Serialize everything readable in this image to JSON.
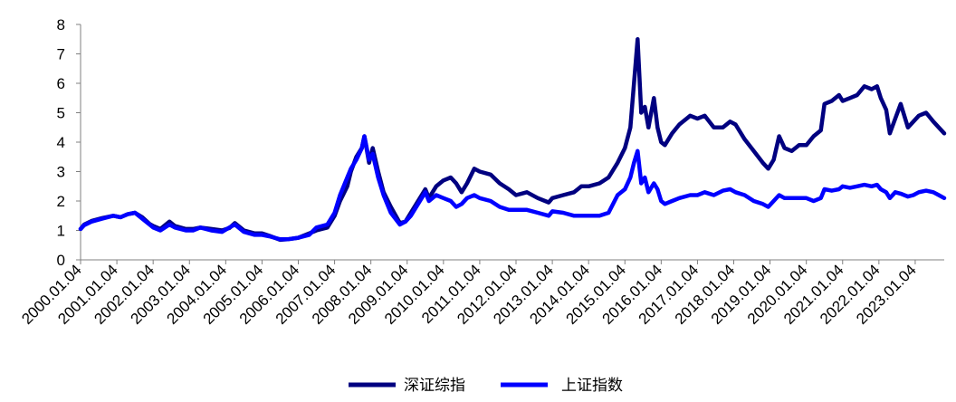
{
  "chart_data": {
    "type": "line",
    "title": "",
    "xlabel": "",
    "ylabel": "",
    "ylim": [
      0,
      8
    ],
    "yticks": [
      0,
      1,
      2,
      3,
      4,
      5,
      6,
      7,
      8
    ],
    "xlim": [
      2000.0,
      2023.8
    ],
    "xtick_labels": [
      "2000.01.04",
      "2001.01.04",
      "2002.01.04",
      "2003.01.04",
      "2004.01.04",
      "2005.01.04",
      "2006.01.04",
      "2007.01.04",
      "2008.01.04",
      "2009.01.04",
      "2010.01.04",
      "2011.01.04",
      "2012.01.04",
      "2013.01.04",
      "2014.01.04",
      "2015.01.04",
      "2016.01.04",
      "2017.01.04",
      "2018.01.04",
      "2019.01.04",
      "2020.01.04",
      "2021.01.04",
      "2022.01.04",
      "2023.01.04"
    ],
    "grid": false,
    "legend_position": "bottom-center",
    "series": [
      {
        "name": "深证综指",
        "color": "#000080",
        "points": [
          [
            2000.0,
            1.05
          ],
          [
            2000.1,
            1.2
          ],
          [
            2000.3,
            1.32
          ],
          [
            2000.6,
            1.42
          ],
          [
            2000.9,
            1.5
          ],
          [
            2001.1,
            1.45
          ],
          [
            2001.3,
            1.55
          ],
          [
            2001.5,
            1.6
          ],
          [
            2001.7,
            1.45
          ],
          [
            2001.9,
            1.22
          ],
          [
            2002.0,
            1.15
          ],
          [
            2002.2,
            1.05
          ],
          [
            2002.45,
            1.3
          ],
          [
            2002.6,
            1.15
          ],
          [
            2002.9,
            1.05
          ],
          [
            2003.1,
            1.05
          ],
          [
            2003.3,
            1.1
          ],
          [
            2003.6,
            1.05
          ],
          [
            2003.9,
            1.0
          ],
          [
            2004.1,
            1.08
          ],
          [
            2004.25,
            1.25
          ],
          [
            2004.5,
            1.0
          ],
          [
            2004.8,
            0.9
          ],
          [
            2005.0,
            0.9
          ],
          [
            2005.2,
            0.82
          ],
          [
            2005.5,
            0.68
          ],
          [
            2005.7,
            0.7
          ],
          [
            2006.0,
            0.75
          ],
          [
            2006.3,
            0.9
          ],
          [
            2006.5,
            1.0
          ],
          [
            2006.8,
            1.1
          ],
          [
            2007.0,
            1.5
          ],
          [
            2007.15,
            2.0
          ],
          [
            2007.35,
            2.5
          ],
          [
            2007.45,
            3.0
          ],
          [
            2007.6,
            3.5
          ],
          [
            2007.75,
            3.8
          ],
          [
            2007.82,
            4.2
          ],
          [
            2007.95,
            3.3
          ],
          [
            2008.05,
            3.8
          ],
          [
            2008.2,
            3.0
          ],
          [
            2008.35,
            2.3
          ],
          [
            2008.55,
            1.8
          ],
          [
            2008.8,
            1.25
          ],
          [
            2008.95,
            1.3
          ],
          [
            2009.1,
            1.6
          ],
          [
            2009.3,
            2.0
          ],
          [
            2009.5,
            2.4
          ],
          [
            2009.6,
            2.1
          ],
          [
            2009.8,
            2.5
          ],
          [
            2010.0,
            2.7
          ],
          [
            2010.2,
            2.8
          ],
          [
            2010.35,
            2.6
          ],
          [
            2010.5,
            2.3
          ],
          [
            2010.65,
            2.6
          ],
          [
            2010.85,
            3.1
          ],
          [
            2011.0,
            3.0
          ],
          [
            2011.3,
            2.9
          ],
          [
            2011.55,
            2.6
          ],
          [
            2011.8,
            2.4
          ],
          [
            2012.0,
            2.2
          ],
          [
            2012.3,
            2.3
          ],
          [
            2012.6,
            2.1
          ],
          [
            2012.9,
            1.95
          ],
          [
            2013.0,
            2.1
          ],
          [
            2013.3,
            2.2
          ],
          [
            2013.6,
            2.3
          ],
          [
            2013.8,
            2.5
          ],
          [
            2014.0,
            2.5
          ],
          [
            2014.3,
            2.6
          ],
          [
            2014.55,
            2.8
          ],
          [
            2014.8,
            3.3
          ],
          [
            2015.0,
            3.8
          ],
          [
            2015.15,
            4.5
          ],
          [
            2015.25,
            6.0
          ],
          [
            2015.35,
            7.5
          ],
          [
            2015.45,
            5.0
          ],
          [
            2015.55,
            5.2
          ],
          [
            2015.65,
            4.5
          ],
          [
            2015.8,
            5.5
          ],
          [
            2015.9,
            4.5
          ],
          [
            2016.0,
            4.0
          ],
          [
            2016.1,
            3.9
          ],
          [
            2016.3,
            4.3
          ],
          [
            2016.5,
            4.6
          ],
          [
            2016.8,
            4.9
          ],
          [
            2017.0,
            4.8
          ],
          [
            2017.2,
            4.9
          ],
          [
            2017.45,
            4.5
          ],
          [
            2017.7,
            4.5
          ],
          [
            2017.9,
            4.7
          ],
          [
            2018.05,
            4.6
          ],
          [
            2018.3,
            4.1
          ],
          [
            2018.55,
            3.7
          ],
          [
            2018.8,
            3.3
          ],
          [
            2018.95,
            3.1
          ],
          [
            2019.1,
            3.4
          ],
          [
            2019.25,
            4.2
          ],
          [
            2019.4,
            3.8
          ],
          [
            2019.6,
            3.7
          ],
          [
            2019.8,
            3.9
          ],
          [
            2020.0,
            3.9
          ],
          [
            2020.2,
            4.2
          ],
          [
            2020.4,
            4.4
          ],
          [
            2020.5,
            5.3
          ],
          [
            2020.7,
            5.4
          ],
          [
            2020.9,
            5.6
          ],
          [
            2021.0,
            5.4
          ],
          [
            2021.2,
            5.5
          ],
          [
            2021.4,
            5.6
          ],
          [
            2021.6,
            5.9
          ],
          [
            2021.8,
            5.8
          ],
          [
            2021.95,
            5.9
          ],
          [
            2022.05,
            5.5
          ],
          [
            2022.2,
            5.1
          ],
          [
            2022.3,
            4.3
          ],
          [
            2022.45,
            4.8
          ],
          [
            2022.6,
            5.3
          ],
          [
            2022.8,
            4.5
          ],
          [
            2022.95,
            4.7
          ],
          [
            2023.1,
            4.9
          ],
          [
            2023.3,
            5.0
          ],
          [
            2023.5,
            4.7
          ],
          [
            2023.65,
            4.5
          ],
          [
            2023.8,
            4.3
          ]
        ]
      },
      {
        "name": "上证指数",
        "color": "#0000ff",
        "points": [
          [
            2000.0,
            1.05
          ],
          [
            2000.1,
            1.18
          ],
          [
            2000.3,
            1.3
          ],
          [
            2000.6,
            1.4
          ],
          [
            2000.9,
            1.5
          ],
          [
            2001.1,
            1.45
          ],
          [
            2001.3,
            1.55
          ],
          [
            2001.5,
            1.6
          ],
          [
            2001.7,
            1.4
          ],
          [
            2001.9,
            1.2
          ],
          [
            2002.0,
            1.1
          ],
          [
            2002.2,
            1.0
          ],
          [
            2002.45,
            1.2
          ],
          [
            2002.6,
            1.1
          ],
          [
            2002.9,
            1.0
          ],
          [
            2003.1,
            1.0
          ],
          [
            2003.3,
            1.1
          ],
          [
            2003.6,
            1.0
          ],
          [
            2003.9,
            0.95
          ],
          [
            2004.1,
            1.1
          ],
          [
            2004.25,
            1.2
          ],
          [
            2004.5,
            0.95
          ],
          [
            2004.8,
            0.85
          ],
          [
            2005.0,
            0.85
          ],
          [
            2005.2,
            0.8
          ],
          [
            2005.5,
            0.7
          ],
          [
            2005.7,
            0.7
          ],
          [
            2006.0,
            0.75
          ],
          [
            2006.3,
            0.85
          ],
          [
            2006.5,
            1.1
          ],
          [
            2006.8,
            1.2
          ],
          [
            2007.0,
            1.6
          ],
          [
            2007.15,
            2.2
          ],
          [
            2007.35,
            2.8
          ],
          [
            2007.45,
            3.1
          ],
          [
            2007.6,
            3.4
          ],
          [
            2007.75,
            3.8
          ],
          [
            2007.82,
            4.2
          ],
          [
            2007.95,
            3.4
          ],
          [
            2008.05,
            3.6
          ],
          [
            2008.2,
            2.8
          ],
          [
            2008.35,
            2.2
          ],
          [
            2008.55,
            1.6
          ],
          [
            2008.8,
            1.2
          ],
          [
            2008.95,
            1.3
          ],
          [
            2009.1,
            1.5
          ],
          [
            2009.3,
            1.9
          ],
          [
            2009.5,
            2.3
          ],
          [
            2009.6,
            2.0
          ],
          [
            2009.8,
            2.2
          ],
          [
            2010.0,
            2.1
          ],
          [
            2010.2,
            2.0
          ],
          [
            2010.35,
            1.8
          ],
          [
            2010.5,
            1.9
          ],
          [
            2010.65,
            2.1
          ],
          [
            2010.85,
            2.2
          ],
          [
            2011.0,
            2.1
          ],
          [
            2011.3,
            2.0
          ],
          [
            2011.55,
            1.8
          ],
          [
            2011.8,
            1.7
          ],
          [
            2012.0,
            1.7
          ],
          [
            2012.3,
            1.7
          ],
          [
            2012.6,
            1.6
          ],
          [
            2012.9,
            1.5
          ],
          [
            2013.0,
            1.65
          ],
          [
            2013.3,
            1.6
          ],
          [
            2013.6,
            1.5
          ],
          [
            2013.8,
            1.5
          ],
          [
            2014.0,
            1.5
          ],
          [
            2014.3,
            1.5
          ],
          [
            2014.55,
            1.6
          ],
          [
            2014.8,
            2.2
          ],
          [
            2015.0,
            2.4
          ],
          [
            2015.15,
            2.8
          ],
          [
            2015.25,
            3.3
          ],
          [
            2015.35,
            3.7
          ],
          [
            2015.45,
            2.6
          ],
          [
            2015.55,
            2.8
          ],
          [
            2015.65,
            2.3
          ],
          [
            2015.8,
            2.6
          ],
          [
            2015.9,
            2.4
          ],
          [
            2016.0,
            2.0
          ],
          [
            2016.1,
            1.9
          ],
          [
            2016.3,
            2.0
          ],
          [
            2016.5,
            2.1
          ],
          [
            2016.8,
            2.2
          ],
          [
            2017.0,
            2.2
          ],
          [
            2017.2,
            2.3
          ],
          [
            2017.45,
            2.2
          ],
          [
            2017.7,
            2.35
          ],
          [
            2017.9,
            2.4
          ],
          [
            2018.05,
            2.3
          ],
          [
            2018.3,
            2.2
          ],
          [
            2018.55,
            2.0
          ],
          [
            2018.8,
            1.9
          ],
          [
            2018.95,
            1.8
          ],
          [
            2019.1,
            2.0
          ],
          [
            2019.25,
            2.2
          ],
          [
            2019.4,
            2.1
          ],
          [
            2019.6,
            2.1
          ],
          [
            2019.8,
            2.1
          ],
          [
            2020.0,
            2.1
          ],
          [
            2020.2,
            2.0
          ],
          [
            2020.4,
            2.1
          ],
          [
            2020.5,
            2.4
          ],
          [
            2020.7,
            2.35
          ],
          [
            2020.9,
            2.4
          ],
          [
            2021.0,
            2.5
          ],
          [
            2021.2,
            2.45
          ],
          [
            2021.4,
            2.5
          ],
          [
            2021.6,
            2.55
          ],
          [
            2021.8,
            2.5
          ],
          [
            2021.95,
            2.55
          ],
          [
            2022.05,
            2.4
          ],
          [
            2022.2,
            2.3
          ],
          [
            2022.3,
            2.1
          ],
          [
            2022.45,
            2.3
          ],
          [
            2022.6,
            2.25
          ],
          [
            2022.8,
            2.15
          ],
          [
            2022.95,
            2.2
          ],
          [
            2023.1,
            2.3
          ],
          [
            2023.3,
            2.35
          ],
          [
            2023.5,
            2.3
          ],
          [
            2023.65,
            2.2
          ],
          [
            2023.8,
            2.1
          ]
        ]
      }
    ]
  }
}
